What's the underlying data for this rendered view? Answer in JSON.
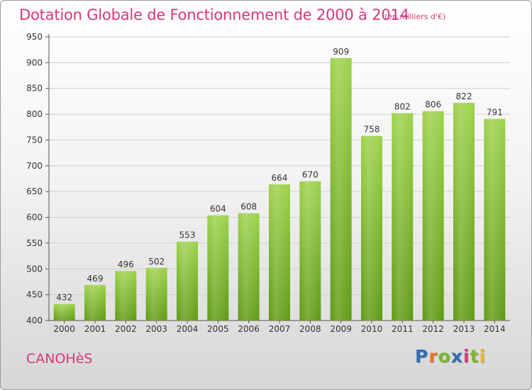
{
  "title": "Dotation Globale de Fonctionnement de 2000 à 2014",
  "subtitle": "(en milliers d'€)",
  "commune": "CANOHèS",
  "logo": {
    "letters": [
      "P",
      "r",
      "o",
      "x",
      "i",
      "t",
      "i"
    ],
    "colors": [
      "#2f6db5",
      "#e8732a",
      "#7fb52e",
      "#2f6db5",
      "#d9367c",
      "#7fb52e",
      "#e8b52a"
    ]
  },
  "chart_data": {
    "type": "bar",
    "title": "Dotation Globale de Fonctionnement de 2000 à 2014",
    "subtitle": "(en milliers d'€)",
    "categories": [
      "2000",
      "2001",
      "2002",
      "2003",
      "2004",
      "2005",
      "2006",
      "2007",
      "2008",
      "2009",
      "2010",
      "2011",
      "2012",
      "2013",
      "2014"
    ],
    "values": [
      432,
      469,
      496,
      502,
      553,
      604,
      608,
      664,
      670,
      909,
      758,
      802,
      806,
      822,
      791
    ],
    "ylim": [
      400,
      950
    ],
    "yticks": [
      400,
      450,
      500,
      550,
      600,
      650,
      700,
      750,
      800,
      850,
      900,
      950
    ],
    "grid": true,
    "bar_color": "#7bb526"
  }
}
